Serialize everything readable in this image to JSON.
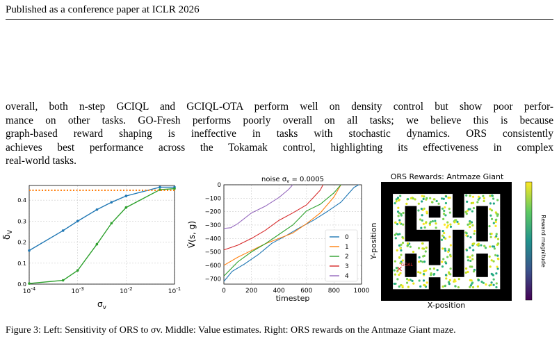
{
  "header": {
    "text": "Published as a conference paper at ICLR 2026"
  },
  "paragraph": {
    "lines": [
      "overall, both n-step GCIQL and GCIQL-OTA perform well on density control but show poor perfor-",
      "mance on other tasks.  GO-Fresh performs poorly overall on all tasks; we believe this is because",
      "graph-based reward shaping is ineffective in tasks with stochastic dynamics.  ORS consistently",
      "achieves best performance across the Tokamak control, highlighting its effectiveness in complex",
      "real-world tasks."
    ]
  },
  "colors": {
    "blue": "#1f77b4",
    "orange": "#ff7f0e",
    "green": "#2ca02c",
    "red": "#d62728",
    "purple": "#9467bd",
    "grid": "#cccccc"
  },
  "chart_data": [
    {
      "type": "line",
      "xscale": "log",
      "xlabel": "σ_v",
      "ylabel": "δ_V",
      "xlim": [
        0.0001,
        0.1
      ],
      "ylim": [
        0.0,
        0.47
      ],
      "xticks": [
        "10^-4",
        "10^-3",
        "10^-2",
        "10^-1"
      ],
      "yticks": [
        "0.0",
        "0.1",
        "0.2",
        "0.3",
        "0.4"
      ],
      "grid": true,
      "series": [
        {
          "color": "blue",
          "style": "solid-marker",
          "x": [
            0.0001,
            0.0005,
            0.001,
            0.0025,
            0.005,
            0.01,
            0.05,
            0.1
          ],
          "y": [
            0.16,
            0.255,
            0.3,
            0.355,
            0.39,
            0.42,
            0.462,
            0.462
          ]
        },
        {
          "color": "green",
          "style": "solid-marker",
          "x": [
            0.0001,
            0.0005,
            0.001,
            0.0025,
            0.005,
            0.01,
            0.05,
            0.1
          ],
          "y": [
            0.003,
            0.018,
            0.065,
            0.19,
            0.29,
            0.365,
            0.45,
            0.455
          ]
        },
        {
          "color": "orange",
          "style": "dotted",
          "x": [
            0.0001,
            0.1
          ],
          "y": [
            0.447,
            0.447
          ]
        }
      ]
    },
    {
      "type": "line",
      "title": "noise σ_v = 0.0005",
      "xlabel": "timestep",
      "ylabel": "V̂(s, g)",
      "xlim": [
        0,
        1000
      ],
      "ylim": [
        -740,
        0
      ],
      "xticks": [
        "0",
        "200",
        "400",
        "600",
        "800",
        "1000"
      ],
      "yticks": [
        "0",
        "−100",
        "−200",
        "−300",
        "−400",
        "−500",
        "−600",
        "−700"
      ],
      "grid": true,
      "legend": "bottom-right",
      "series": [
        {
          "name": "0",
          "color": "blue",
          "x": [
            0,
            60,
            150,
            250,
            350,
            450,
            550,
            650,
            750,
            850,
            945,
            980
          ],
          "y": [
            -720,
            -645,
            -590,
            -520,
            -435,
            -380,
            -320,
            -265,
            -200,
            -130,
            -20,
            0
          ]
        },
        {
          "name": "1",
          "color": "orange",
          "x": [
            0,
            100,
            200,
            300,
            400,
            500,
            600,
            700,
            800,
            850
          ],
          "y": [
            -600,
            -540,
            -490,
            -440,
            -400,
            -360,
            -290,
            -210,
            -90,
            0
          ]
        },
        {
          "name": "2",
          "color": "green",
          "x": [
            0,
            100,
            200,
            300,
            400,
            500,
            600,
            700,
            800,
            850
          ],
          "y": [
            -680,
            -575,
            -500,
            -440,
            -370,
            -300,
            -195,
            -145,
            -60,
            0
          ]
        },
        {
          "name": "3",
          "color": "red",
          "x": [
            0,
            100,
            200,
            300,
            400,
            500,
            600,
            700,
            720
          ],
          "y": [
            -485,
            -450,
            -400,
            -340,
            -265,
            -210,
            -150,
            -40,
            0
          ]
        },
        {
          "name": "4",
          "color": "purple",
          "x": [
            0,
            50,
            100,
            200,
            300,
            400,
            470,
            500
          ],
          "y": [
            -325,
            -320,
            -290,
            -210,
            -160,
            -95,
            -35,
            0
          ]
        }
      ]
    },
    {
      "type": "heatmap",
      "title": "ORS Rewards: Antmaze Giant",
      "xlabel": "X-position",
      "ylabel": "Y-position",
      "colorbar_label": "Reward magnitude",
      "annotation": "GOAL"
    }
  ],
  "caption": {
    "text": "Figure 3: Left: Sensitivity of ORS to σv. Middle: Value estimates. Right: ORS rewards on the Antmaze Giant maze."
  }
}
